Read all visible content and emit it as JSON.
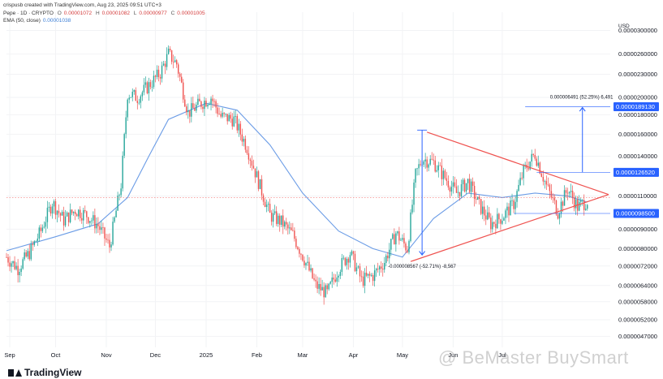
{
  "header": {
    "created_by": "crispusb created with TradingView.com, Aug 23, 2025 09:51 UTC+3",
    "symbol": "Pepe · 1D · CRYPTO",
    "o_label": "O",
    "o_value": "0.00001072",
    "h_label": "H",
    "h_value": "0.00001082",
    "l_label": "L",
    "l_value": "0.00000977",
    "c_label": "C",
    "c_value": "0.00001005",
    "ema_label": "EMA (50, close)",
    "ema_value": "0.00001038"
  },
  "footer": {
    "brand": "TradingView"
  },
  "watermark": "@ BeMaster BuySmart",
  "colors": {
    "up": "#26a69a",
    "down": "#ef5350",
    "ema": "#6b9ce6",
    "triangle": "#ef5350",
    "measure": "#2962ff",
    "badge": "#2962ff",
    "grid": "#f2f3f5",
    "text": "#131722"
  },
  "chart_data": {
    "type": "candlestick",
    "title": "",
    "currency": "USD",
    "y_scale": "log",
    "ylim": [
      4.4e-06,
      3.35e-05
    ],
    "y_ticks": [
      {
        "value": 3e-05,
        "label": "0.0000300000"
      },
      {
        "value": 2.6e-05,
        "label": "0.0000260000"
      },
      {
        "value": 2.3e-05,
        "label": "0.0000230000"
      },
      {
        "value": 2e-05,
        "label": "0.0000200000"
      },
      {
        "value": 1.8e-05,
        "label": "0.0000180000"
      },
      {
        "value": 1.6e-05,
        "label": "0.0000160000"
      },
      {
        "value": 1.4e-05,
        "label": "0.0000140000"
      },
      {
        "value": 1.1e-05,
        "label": "0.0000110000"
      },
      {
        "value": 9e-06,
        "label": "0.0000090000"
      },
      {
        "value": 8e-06,
        "label": "0.0000080000"
      },
      {
        "value": 7.2e-06,
        "label": "0.0000072000"
      },
      {
        "value": 6.4e-06,
        "label": "0.0000064000"
      },
      {
        "value": 5.8e-06,
        "label": "0.0000058000"
      },
      {
        "value": 5.2e-06,
        "label": "0.0000052000"
      },
      {
        "value": 4.7e-06,
        "label": "0.0000047000"
      }
    ],
    "x_range": [
      "2024-09-01",
      "2025-09-05"
    ],
    "x_ticks": [
      {
        "date": "2024-09-03",
        "label": "Sep"
      },
      {
        "date": "2024-10-01",
        "label": "Oct"
      },
      {
        "date": "2024-11-01",
        "label": "Nov"
      },
      {
        "date": "2024-12-01",
        "label": "Dec"
      },
      {
        "date": "2025-01-01",
        "label": "2025"
      },
      {
        "date": "2025-02-01",
        "label": "Feb"
      },
      {
        "date": "2025-03-01",
        "label": "Mar"
      },
      {
        "date": "2025-04-01",
        "label": "Apr"
      },
      {
        "date": "2025-05-01",
        "label": "May"
      },
      {
        "date": "2025-06-01",
        "label": "Jun"
      },
      {
        "date": "2025-07-01",
        "label": "Jul"
      }
    ],
    "price_path": [
      [
        "2024-09-01",
        7.6e-06
      ],
      [
        "2024-09-08",
        7.1e-06
      ],
      [
        "2024-09-15",
        7.8e-06
      ],
      [
        "2024-09-22",
        8.9e-06
      ],
      [
        "2024-09-29",
        1.06e-05
      ],
      [
        "2024-10-06",
        9.5e-06
      ],
      [
        "2024-10-13",
        1.01e-05
      ],
      [
        "2024-10-20",
        9.8e-06
      ],
      [
        "2024-10-27",
        9.2e-06
      ],
      [
        "2024-11-03",
        8.1e-06
      ],
      [
        "2024-11-10",
        1.18e-05
      ],
      [
        "2024-11-14",
        2.05e-05
      ],
      [
        "2024-11-20",
        2e-05
      ],
      [
        "2024-11-27",
        2.15e-05
      ],
      [
        "2024-12-04",
        2.32e-05
      ],
      [
        "2024-12-09",
        2.6e-05
      ],
      [
        "2024-12-14",
        2.45e-05
      ],
      [
        "2024-12-21",
        1.82e-05
      ],
      [
        "2024-12-28",
        1.92e-05
      ],
      [
        "2025-01-04",
        2e-05
      ],
      [
        "2025-01-10",
        1.78e-05
      ],
      [
        "2025-01-18",
        1.75e-05
      ],
      [
        "2025-01-26",
        1.48e-05
      ],
      [
        "2025-02-02",
        1.2e-05
      ],
      [
        "2025-02-09",
        9.8e-06
      ],
      [
        "2025-02-16",
        9.4e-06
      ],
      [
        "2025-02-23",
        8.7e-06
      ],
      [
        "2025-03-02",
        7.5e-06
      ],
      [
        "2025-03-09",
        6.4e-06
      ],
      [
        "2025-03-16",
        6.1e-06
      ],
      [
        "2025-03-23",
        7.1e-06
      ],
      [
        "2025-03-30",
        7.8e-06
      ],
      [
        "2025-04-06",
        6.6e-06
      ],
      [
        "2025-04-13",
        6.8e-06
      ],
      [
        "2025-04-20",
        7.4e-06
      ],
      [
        "2025-04-27",
        8.8e-06
      ],
      [
        "2025-05-04",
        8e-06
      ],
      [
        "2025-05-09",
        1.25e-05
      ],
      [
        "2025-05-13",
        1.38e-05
      ],
      [
        "2025-05-20",
        1.35e-05
      ],
      [
        "2025-05-27",
        1.23e-05
      ],
      [
        "2025-06-03",
        1.12e-05
      ],
      [
        "2025-06-10",
        1.2e-05
      ],
      [
        "2025-06-17",
        1.04e-05
      ],
      [
        "2025-06-24",
        9.3e-06
      ],
      [
        "2025-07-01",
        9.7e-06
      ],
      [
        "2025-07-08",
        1.05e-05
      ],
      [
        "2025-07-14",
        1.28e-05
      ],
      [
        "2025-07-21",
        1.42e-05
      ],
      [
        "2025-07-28",
        1.17e-05
      ],
      [
        "2025-08-04",
        1e-05
      ],
      [
        "2025-08-10",
        1.15e-05
      ],
      [
        "2025-08-16",
        1.03e-05
      ],
      [
        "2025-08-22",
        1.07e-05
      ]
    ],
    "ema_path": [
      [
        "2024-09-01",
        7.9e-06
      ],
      [
        "2024-10-01",
        8.6e-06
      ],
      [
        "2024-10-27",
        9.3e-06
      ],
      [
        "2024-11-14",
        1.09e-05
      ],
      [
        "2024-11-27",
        1.4e-05
      ],
      [
        "2024-12-09",
        1.75e-05
      ],
      [
        "2025-01-01",
        1.93e-05
      ],
      [
        "2025-01-20",
        1.85e-05
      ],
      [
        "2025-02-09",
        1.5e-05
      ],
      [
        "2025-03-01",
        1.12e-05
      ],
      [
        "2025-03-23",
        8.9e-06
      ],
      [
        "2025-04-13",
        8e-06
      ],
      [
        "2025-05-01",
        7.6e-06
      ],
      [
        "2025-05-20",
        9.6e-06
      ],
      [
        "2025-06-10",
        1.12e-05
      ],
      [
        "2025-07-01",
        1.09e-05
      ],
      [
        "2025-07-21",
        1.12e-05
      ],
      [
        "2025-08-10",
        1.1e-05
      ],
      [
        "2025-08-22",
        1.06e-05
      ]
    ],
    "annotations": {
      "reference_price": 1.09e-05,
      "triangle": {
        "upper": [
          [
            "2025-05-16",
            1.62e-05
          ],
          [
            "2025-09-04",
            1.11e-05
          ]
        ],
        "lower": [
          [
            "2025-05-06",
            7.4e-06
          ],
          [
            "2025-09-04",
            1.11e-05
          ]
        ]
      },
      "drop_measure": {
        "from": [
          "2025-05-13",
          1.64e-05
        ],
        "to": [
          "2025-05-13",
          7.7e-06
        ],
        "label": "-0.000008567 (-52.71%) -8,567"
      },
      "target_measure": {
        "from": [
          "2025-08-19",
          1.27e-05
        ],
        "to": [
          "2025-08-19",
          1.88e-05
        ],
        "label": "0.000006491 (52.25%) 6,491"
      },
      "levels": [
        {
          "value": 1.89e-05,
          "label": "0.0000189130",
          "from": "2025-07-15"
        },
        {
          "value": 1.27e-05,
          "label": "0.0000126520",
          "from": "2025-07-22"
        },
        {
          "value": 9.9e-06,
          "label": "0.0000098500",
          "from": "2025-07-08"
        }
      ]
    }
  }
}
